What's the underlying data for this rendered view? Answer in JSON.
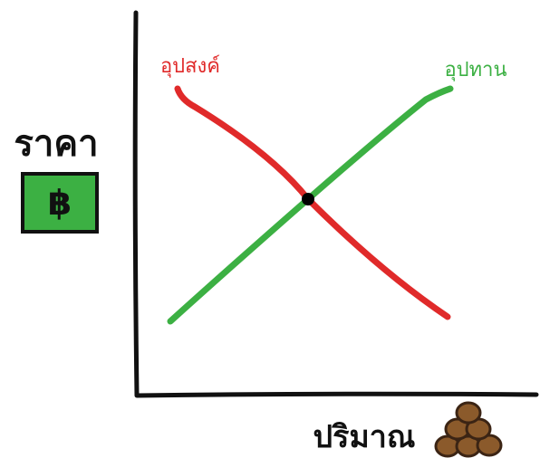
{
  "diagram": {
    "y_axis_label": "ราคา",
    "x_axis_label": "ปริมาณ",
    "curves": [
      {
        "label": "อุปสงค์",
        "color": "#e02a2a"
      },
      {
        "label": "อุปทาน",
        "color": "#3cb043"
      }
    ]
  }
}
